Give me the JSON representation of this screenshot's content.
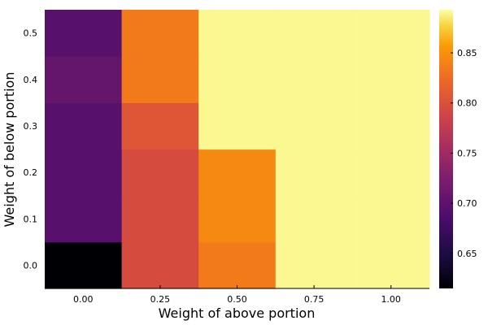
{
  "chart_data": {
    "type": "heatmap",
    "title": "",
    "xlabel": "Weight of above portion",
    "ylabel": "Weight of below portion",
    "x": [
      0.0,
      0.25,
      0.5,
      0.75,
      1.0
    ],
    "y": [
      0.0,
      0.1,
      0.2,
      0.3,
      0.4,
      0.5
    ],
    "x_tick_labels": [
      "0.00",
      "0.25",
      "0.50",
      "0.75",
      "1.00"
    ],
    "y_tick_labels": [
      "0.0",
      "0.1",
      "0.2",
      "0.3",
      "0.4",
      "0.5"
    ],
    "z": [
      [
        0.615,
        0.795,
        0.835,
        0.89,
        0.89
      ],
      [
        0.695,
        0.795,
        0.845,
        0.89,
        0.89
      ],
      [
        0.695,
        0.795,
        0.845,
        0.89,
        0.89
      ],
      [
        0.695,
        0.805,
        0.89,
        0.89,
        0.89
      ],
      [
        0.705,
        0.835,
        0.89,
        0.89,
        0.89
      ],
      [
        0.695,
        0.835,
        0.89,
        0.89,
        0.89
      ]
    ],
    "zlim": [
      0.615,
      0.893
    ],
    "colorbar_ticks": [
      0.65,
      0.7,
      0.75,
      0.8,
      0.85
    ],
    "colorbar_tick_labels": [
      "0.65",
      "0.70",
      "0.75",
      "0.80",
      "0.85"
    ],
    "colormap": "inferno",
    "grid": false,
    "legend": "colorbar-right"
  }
}
